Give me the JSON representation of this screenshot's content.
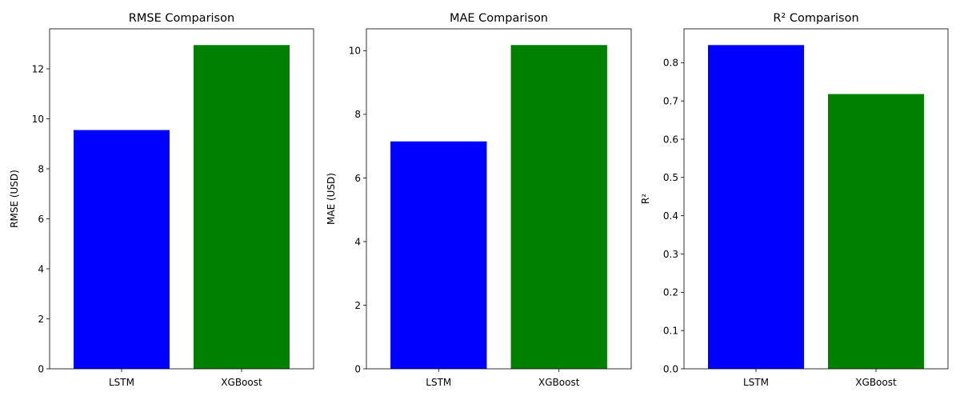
{
  "chart_data": [
    {
      "type": "bar",
      "title": "RMSE Comparison",
      "xlabel": "",
      "ylabel": "RMSE (USD)",
      "categories": [
        "LSTM",
        "XGBoost"
      ],
      "values": [
        9.55,
        12.95
      ],
      "colors": [
        "#0000ff",
        "#008000"
      ],
      "ylim": [
        0,
        13.6
      ],
      "yticks": [
        0,
        2,
        4,
        6,
        8,
        10,
        12
      ],
      "ytick_labels": [
        "0",
        "2",
        "4",
        "6",
        "8",
        "10",
        "12"
      ],
      "grid": false
    },
    {
      "type": "bar",
      "title": "MAE Comparison",
      "xlabel": "",
      "ylabel": "MAE (USD)",
      "categories": [
        "LSTM",
        "XGBoost"
      ],
      "values": [
        7.15,
        10.18
      ],
      "colors": [
        "#0000ff",
        "#008000"
      ],
      "ylim": [
        0,
        10.69
      ],
      "yticks": [
        0,
        2,
        4,
        6,
        8,
        10
      ],
      "ytick_labels": [
        "0",
        "2",
        "4",
        "6",
        "8",
        "10"
      ],
      "grid": false
    },
    {
      "type": "bar",
      "title": "R² Comparison",
      "xlabel": "",
      "ylabel": "R²",
      "categories": [
        "LSTM",
        "XGBoost"
      ],
      "values": [
        0.846,
        0.718
      ],
      "colors": [
        "#0000ff",
        "#008000"
      ],
      "ylim": [
        0,
        0.8885
      ],
      "yticks": [
        0.0,
        0.1,
        0.2,
        0.3,
        0.4,
        0.5,
        0.6,
        0.7,
        0.8
      ],
      "ytick_labels": [
        "0.0",
        "0.1",
        "0.2",
        "0.3",
        "0.4",
        "0.5",
        "0.6",
        "0.7",
        "0.8"
      ],
      "grid": false
    }
  ]
}
